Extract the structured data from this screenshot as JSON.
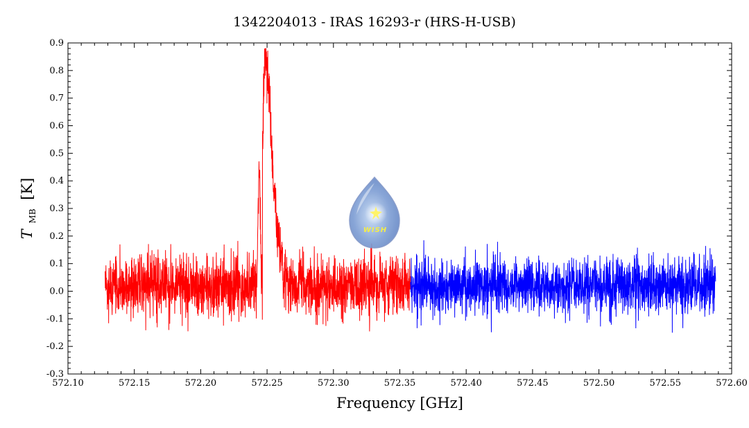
{
  "chart_data": {
    "type": "line",
    "title": "1342204013 - IRAS 16293-r (HRS-H-USB)",
    "xlabel": "Frequency [GHz]",
    "ylabel": "T",
    "ylabel_sub": "MB",
    "ylabel_unit": "[K]",
    "xlim": [
      572.1,
      572.6
    ],
    "ylim": [
      -0.3,
      0.9
    ],
    "xticks": [
      572.1,
      572.15,
      572.2,
      572.25,
      572.3,
      572.35,
      572.4,
      572.45,
      572.5,
      572.55,
      572.6
    ],
    "xtick_labels": [
      "572.10",
      "572.15",
      "572.20",
      "572.25",
      "572.30",
      "572.35",
      "572.40",
      "572.45",
      "572.50",
      "572.55",
      "572.60"
    ],
    "yticks": [
      -0.3,
      -0.2,
      -0.1,
      0.0,
      0.1,
      0.2,
      0.3,
      0.4,
      0.5,
      0.6,
      0.7,
      0.8,
      0.9
    ],
    "ytick_labels": [
      "-0.3",
      "-0.2",
      "-0.1",
      "0.0",
      "0.1",
      "0.2",
      "0.3",
      "0.4",
      "0.5",
      "0.6",
      "0.7",
      "0.8",
      "0.9"
    ],
    "grid": false,
    "series": [
      {
        "color": "#ff0000",
        "x_range": [
          572.128,
          572.358
        ],
        "baseline": 0.02,
        "noise_sigma": 0.055,
        "line_feature": {
          "center": 572.252,
          "peak": 0.86,
          "width": 0.012,
          "onset": 572.2465
        },
        "secondary_feature": {
          "center": 572.244,
          "peak": 0.4
        }
      },
      {
        "color": "#0000ff",
        "x_range": [
          572.358,
          572.588
        ],
        "baseline": 0.02,
        "noise_sigma": 0.05
      }
    ]
  },
  "logo": {
    "text": "WISH",
    "fill": "#8fa8d8",
    "star_color": "#fff36a"
  }
}
